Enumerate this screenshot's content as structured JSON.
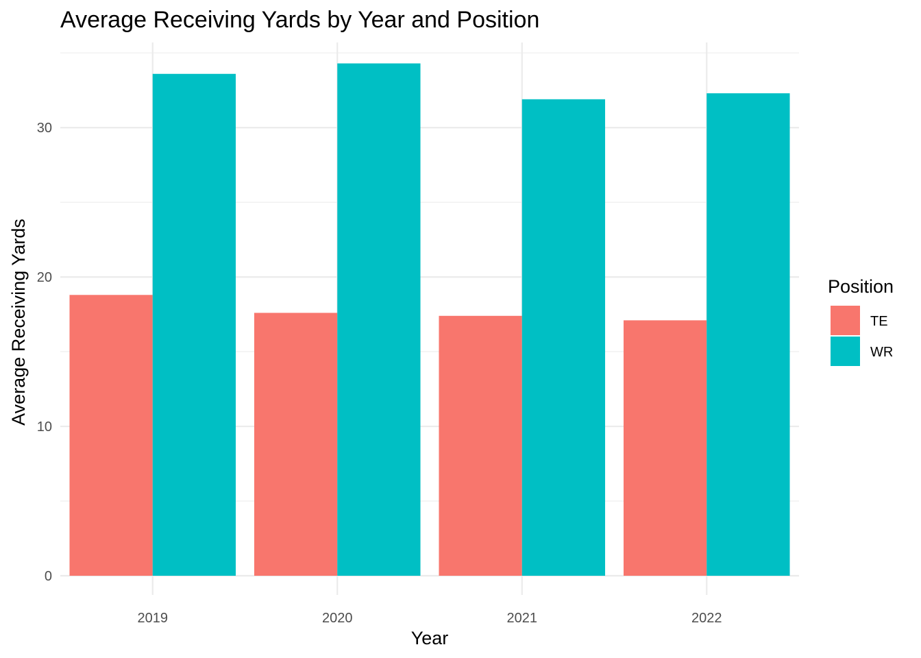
{
  "chart_data": {
    "type": "bar",
    "title": "Average Receiving Yards by Year and Position",
    "xlabel": "Year",
    "ylabel": "Average Receiving Yards",
    "categories": [
      "2019",
      "2020",
      "2021",
      "2022"
    ],
    "series": [
      {
        "name": "TE",
        "color": "#F8766D",
        "values": [
          18.8,
          17.6,
          17.4,
          17.1
        ]
      },
      {
        "name": "WR",
        "color": "#00BFC4",
        "values": [
          33.6,
          34.3,
          31.9,
          32.3
        ]
      }
    ],
    "ylim": [
      0,
      35.7
    ],
    "y_ticks": [
      0,
      10,
      20,
      30
    ],
    "y_tick_labels": [
      "0",
      "10",
      "20",
      "30"
    ],
    "grid": true,
    "legend": {
      "title": "Position",
      "position": "right"
    }
  }
}
